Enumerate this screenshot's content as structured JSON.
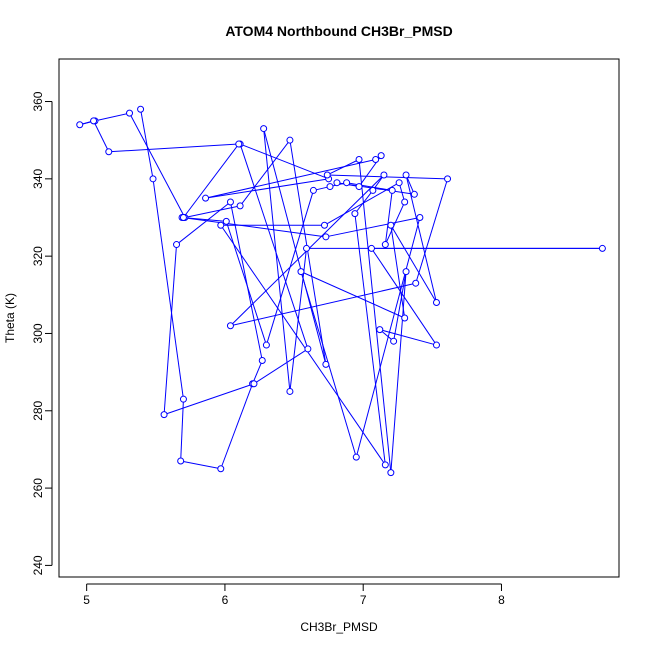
{
  "chart_data": {
    "type": "line",
    "title": "ATOM4 Northbound CH3Br_PMSD",
    "xlabel": "CH3Br_PMSD",
    "ylabel": "Theta (K)",
    "xlim": [
      4.8,
      8.85
    ],
    "ylim": [
      237,
      371
    ],
    "xticks": [
      5,
      6,
      7,
      8
    ],
    "yticks": [
      240,
      260,
      280,
      300,
      320,
      340,
      360
    ],
    "grid": false,
    "legend": "none",
    "series_color": "#0000ff",
    "series": [
      {
        "markers": "open-circle",
        "x": [
          5.39,
          5.48,
          5.7,
          5.68,
          5.97,
          6.2,
          6.27,
          6.04,
          5.65,
          5.56,
          6.21,
          6.6,
          6.11,
          6.75,
          5.86,
          7.09,
          7.13,
          6.97,
          6.81,
          7.37,
          7.31,
          7.53,
          7.2,
          7.3,
          6.55,
          6.95,
          7.41,
          6.73,
          5.69,
          6.01,
          6.3,
          6.64,
          6.76,
          6.88,
          7.21,
          7.16,
          7.3,
          7.26,
          6.72,
          5.97,
          7.16,
          6.94,
          7.07,
          7.15,
          6.04,
          7.38,
          7.61,
          6.74,
          6.97,
          7.2,
          7.31,
          7.22,
          7.12,
          7.53,
          7.06,
          8.73,
          6.59,
          6.47,
          6.28,
          6.73,
          6.47,
          6.11,
          5.71,
          5.31,
          5.06,
          4.95,
          5.05,
          5.16,
          6.1,
          5.7
        ],
        "y": [
          358,
          340,
          283,
          267,
          265,
          287,
          293,
          334,
          323,
          279,
          287,
          296,
          349,
          340,
          335,
          345,
          346,
          338,
          339,
          336,
          341,
          308,
          328,
          304,
          316,
          268,
          330,
          325,
          330,
          329,
          297,
          337,
          338,
          339,
          337,
          323,
          334,
          339,
          328,
          328,
          266,
          331,
          337,
          341,
          302,
          313,
          340,
          341,
          345,
          264,
          316,
          298,
          301,
          297,
          322,
          322,
          322,
          285,
          353,
          292,
          350,
          333,
          330,
          357,
          355,
          354,
          355,
          347,
          349,
          330
        ]
      }
    ]
  }
}
